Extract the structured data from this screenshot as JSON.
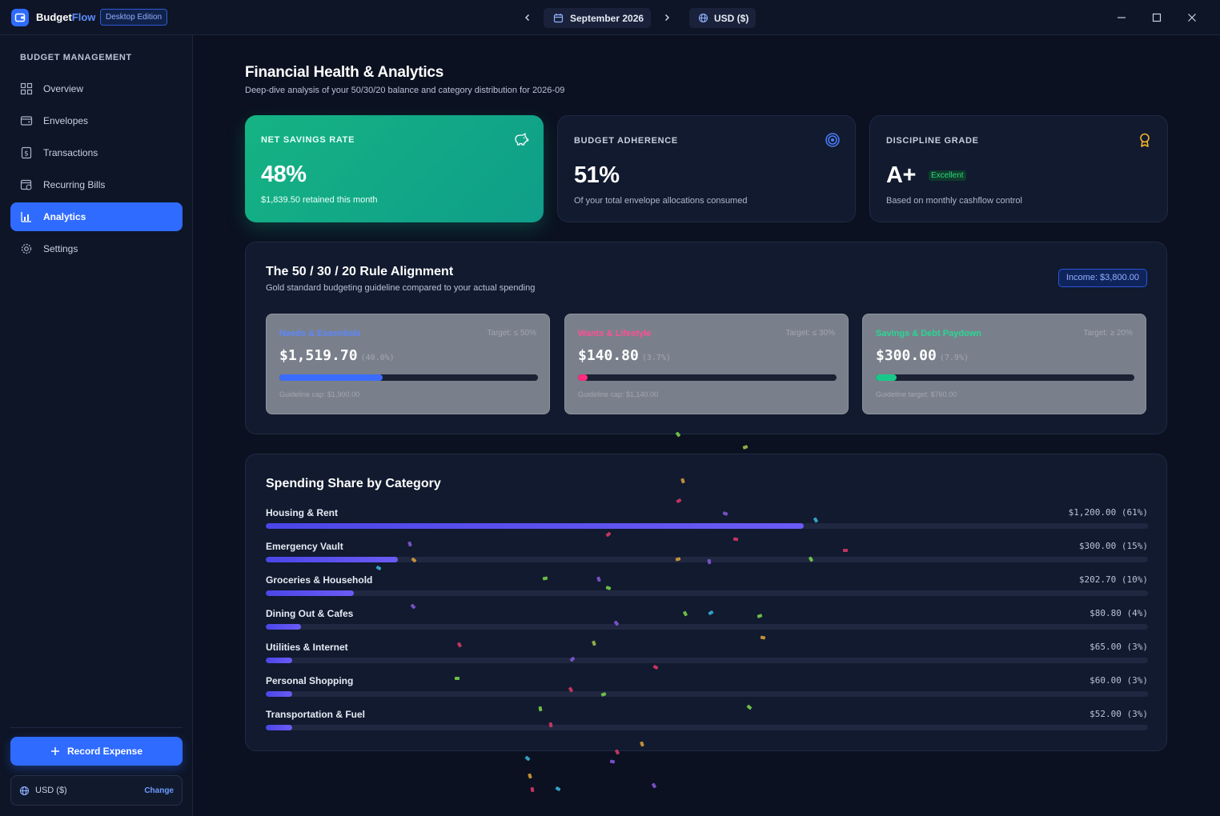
{
  "app": {
    "name_a": "Budget",
    "name_b": "Flow",
    "edition": "Desktop Edition",
    "month": "September 2026",
    "currency_pill": "USD ($)"
  },
  "sidebar": {
    "heading": "BUDGET MANAGEMENT",
    "items": [
      {
        "label": "Overview",
        "icon": "grid-icon"
      },
      {
        "label": "Envelopes",
        "icon": "envelope-icon"
      },
      {
        "label": "Transactions",
        "icon": "receipt-icon"
      },
      {
        "label": "Recurring Bills",
        "icon": "calendar-icon"
      },
      {
        "label": "Analytics",
        "icon": "chart-icon",
        "active": true
      },
      {
        "label": "Settings",
        "icon": "gear-icon"
      }
    ],
    "record_button": "Record Expense",
    "currency_label": "USD ($)",
    "currency_change": "Change"
  },
  "page": {
    "title": "Financial Health & Analytics",
    "subtitle": "Deep-dive analysis of your 50/30/20 balance and category distribution for 2026-09"
  },
  "stats": {
    "savings": {
      "label": "NET SAVINGS RATE",
      "value": "48%",
      "desc": "$1,839.50 retained this month",
      "icon": "piggy-bank-icon"
    },
    "adherence": {
      "label": "BUDGET ADHERENCE",
      "value": "51%",
      "desc": "Of your total envelope allocations consumed",
      "icon": "target-icon"
    },
    "grade": {
      "label": "DISCIPLINE GRADE",
      "value": "A+",
      "badge": "Excellent",
      "desc": "Based on monthly cashflow control",
      "icon": "award-icon"
    }
  },
  "rule_panel": {
    "title": "The 50 / 30 / 20 Rule Alignment",
    "subtitle": "Gold standard budgeting guideline compared to your actual spending",
    "income": "Income: $3,800.00",
    "cards": [
      {
        "name": "Needs & Essentials",
        "target": "Target: ≤ 50%",
        "amount": "$1,519.70",
        "pct": "(40.0%)",
        "fill": 0.4,
        "foot": "Guideline cap: $1,900.00",
        "color": "#3b6cff",
        "name_color": "#5b86ff"
      },
      {
        "name": "Wants & Lifestyle",
        "target": "Target: ≤ 30%",
        "amount": "$140.80",
        "pct": "(3.7%)",
        "fill": 0.037,
        "foot": "Guideline cap: $1,140.00",
        "color": "#ff2e7e",
        "name_color": "#ff4f93"
      },
      {
        "name": "Savings & Debt Paydown",
        "target": "Target: ≥ 20%",
        "amount": "$300.00",
        "pct": "(7.9%)",
        "fill": 0.079,
        "foot": "Guideline target: $760.00",
        "color": "#18c98a",
        "name_color": "#28d795"
      }
    ]
  },
  "category_panel": {
    "title": "Spending Share by Category",
    "rows": [
      {
        "name": "Housing & Rent",
        "value": "$1,200.00 (61%)",
        "share": 0.61
      },
      {
        "name": "Emergency Vault",
        "value": "$300.00 (15%)",
        "share": 0.15
      },
      {
        "name": "Groceries & Household",
        "value": "$202.70 (10%)",
        "share": 0.1
      },
      {
        "name": "Dining Out & Cafes",
        "value": "$80.80 (4%)",
        "share": 0.04
      },
      {
        "name": "Utilities & Internet",
        "value": "$65.00 (3%)",
        "share": 0.03
      },
      {
        "name": "Personal Shopping",
        "value": "$60.00 (3%)",
        "share": 0.03
      },
      {
        "name": "Transportation & Fuel",
        "value": "$52.00 (3%)",
        "share": 0.03
      }
    ]
  }
}
